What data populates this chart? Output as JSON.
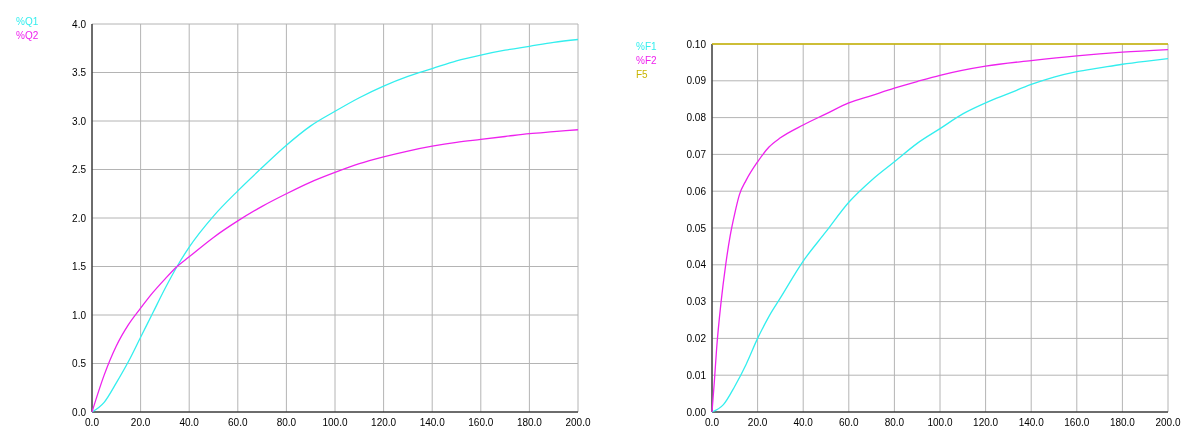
{
  "chart_data": [
    {
      "type": "line",
      "x": [
        0,
        5,
        10,
        15,
        20,
        25,
        30,
        35,
        40,
        50,
        60,
        70,
        80,
        90,
        100,
        110,
        120,
        130,
        140,
        150,
        160,
        170,
        180,
        190,
        200
      ],
      "xlim": [
        0,
        200
      ],
      "xticks": [
        {
          "value": 0,
          "label": "0.0"
        },
        {
          "value": 20,
          "label": "20.0"
        },
        {
          "value": 40,
          "label": "40.0"
        },
        {
          "value": 60,
          "label": "60.0"
        },
        {
          "value": 80,
          "label": "80.0"
        },
        {
          "value": 100,
          "label": "100.0"
        },
        {
          "value": 120,
          "label": "120.0"
        },
        {
          "value": 140,
          "label": "140.0"
        },
        {
          "value": 160,
          "label": "160.0"
        },
        {
          "value": 180,
          "label": "180.0"
        },
        {
          "value": 200,
          "label": "200.0"
        }
      ],
      "ylim": [
        0,
        4
      ],
      "yticks": [
        {
          "value": 0,
          "label": "0.0"
        },
        0.5,
        {
          "value": 1,
          "label": "1.0"
        },
        1.5,
        {
          "value": 2,
          "label": "2.0"
        },
        2.5,
        {
          "value": 3,
          "label": "3.0"
        },
        3.5,
        {
          "value": 4,
          "label": "4.0"
        }
      ],
      "grid": true,
      "legend": "top left",
      "series": [
        {
          "name": "%Q1",
          "color": "#33eeee",
          "values": [
            0,
            0.1,
            0.3,
            0.52,
            0.77,
            1.02,
            1.27,
            1.5,
            1.7,
            2.02,
            2.28,
            2.52,
            2.75,
            2.95,
            3.1,
            3.24,
            3.36,
            3.46,
            3.54,
            3.62,
            3.68,
            3.73,
            3.77,
            3.81,
            3.84
          ]
        },
        {
          "name": "%Q2",
          "color": "#ee22ee",
          "values": [
            0,
            0.38,
            0.68,
            0.9,
            1.07,
            1.23,
            1.37,
            1.5,
            1.6,
            1.8,
            1.97,
            2.12,
            2.25,
            2.37,
            2.47,
            2.56,
            2.63,
            2.69,
            2.74,
            2.78,
            2.81,
            2.84,
            2.87,
            2.89,
            2.91
          ]
        }
      ]
    },
    {
      "type": "line",
      "xlim": [
        0,
        200
      ],
      "xticks": [
        {
          "value": 0,
          "label": "0.0"
        },
        {
          "value": 20,
          "label": "20.0"
        },
        {
          "value": 40,
          "label": "40.0"
        },
        {
          "value": 60,
          "label": "60.0"
        },
        {
          "value": 80,
          "label": "80.0"
        },
        {
          "value": 100,
          "label": "100.0"
        },
        {
          "value": 120,
          "label": "120.0"
        },
        {
          "value": 140,
          "label": "140.0"
        },
        {
          "value": 160,
          "label": "160.0"
        },
        {
          "value": 180,
          "label": "180.0"
        },
        {
          "value": 200,
          "label": "200.0"
        }
      ],
      "ylim": [
        0,
        0.1
      ],
      "yticks": [
        {
          "value": 0,
          "label": "0.00"
        },
        0.01,
        0.02,
        0.03,
        0.04,
        0.05,
        0.06,
        0.07,
        0.08,
        0.09,
        {
          "value": 0.1,
          "label": "0.10"
        }
      ],
      "grid": true,
      "legend": "top left",
      "series": [
        {
          "name": "%F1",
          "color": "#33eeee",
          "x": [
            0,
            5,
            10,
            15,
            20,
            25,
            30,
            40,
            50,
            60,
            70,
            80,
            90,
            100,
            110,
            120,
            130,
            140,
            150,
            160,
            170,
            180,
            190,
            200
          ],
          "values": [
            0,
            0.002,
            0.007,
            0.013,
            0.02,
            0.026,
            0.031,
            0.041,
            0.049,
            0.057,
            0.063,
            0.068,
            0.073,
            0.077,
            0.081,
            0.084,
            0.0865,
            0.089,
            0.091,
            0.0925,
            0.0935,
            0.0945,
            0.0953,
            0.096
          ]
        },
        {
          "name": "%F2",
          "color": "#ee22ee",
          "x": [
            0,
            1,
            2,
            4,
            6,
            8,
            10,
            12,
            15,
            20,
            25,
            30,
            40,
            50,
            60,
            70,
            80,
            90,
            100,
            120,
            140,
            160,
            180,
            200
          ],
          "values": [
            0,
            0.008,
            0.017,
            0.03,
            0.04,
            0.048,
            0.054,
            0.059,
            0.063,
            0.068,
            0.072,
            0.0745,
            0.078,
            0.081,
            0.084,
            0.086,
            0.088,
            0.0898,
            0.0915,
            0.094,
            0.0955,
            0.0968,
            0.0978,
            0.0985
          ]
        },
        {
          "name": "F5",
          "color": "#c8b400",
          "x": [
            0,
            200
          ],
          "values": [
            0.1,
            0.1
          ]
        }
      ]
    }
  ]
}
